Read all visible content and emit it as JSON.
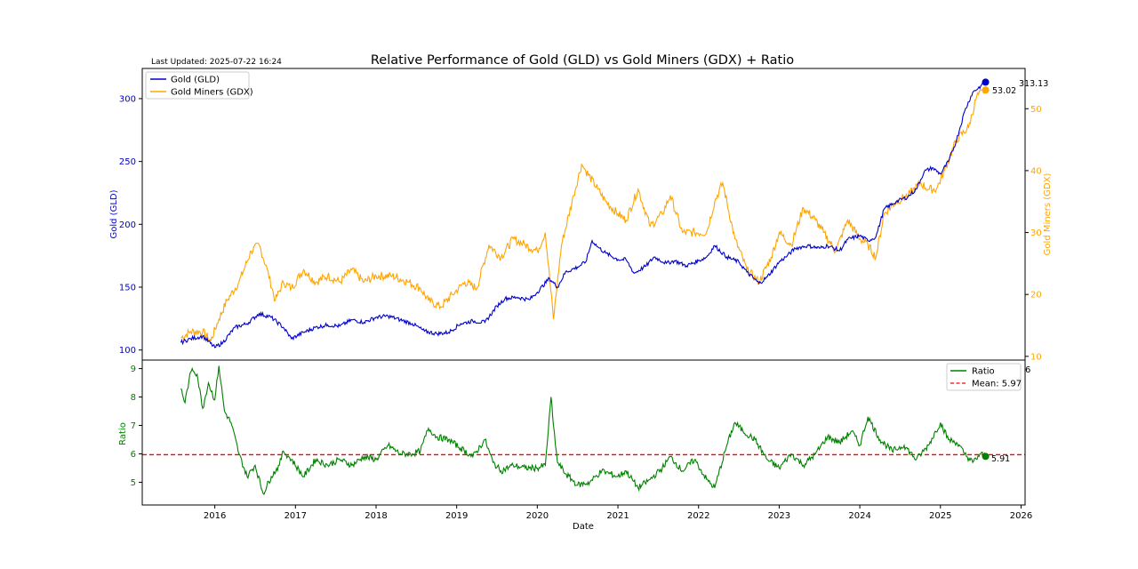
{
  "last_updated": "Last Updated: 2025-07-22 16:24",
  "chart_data": {
    "type": "line",
    "title": "Relative Performance of Gold (GLD) vs Gold Miners (GDX) + Ratio",
    "xlabel": "Date",
    "x_ticks": [
      "2016",
      "2017",
      "2018",
      "2019",
      "2020",
      "2021",
      "2022",
      "2023",
      "2024",
      "2025",
      "2026"
    ],
    "xlim": [
      2015.1,
      2026.05
    ],
    "top_panel": {
      "left_axis": {
        "label": "Gold (GLD)",
        "ylim": [
          92,
          324
        ],
        "ticks": [
          "100",
          "150",
          "200",
          "250",
          "300"
        ],
        "color": "#0000cc"
      },
      "right_axis": {
        "label": "Gold Miners (GDX)",
        "ylim": [
          9.4,
          56.5
        ],
        "ticks": [
          "10",
          "20",
          "30",
          "40",
          "50"
        ],
        "color": "#ffa500"
      },
      "series": [
        {
          "name": "Gold (GLD)",
          "color": "#0000cc",
          "axis": "left",
          "x": [
            2015.58,
            2015.7,
            2015.85,
            2016.0,
            2016.1,
            2016.25,
            2016.4,
            2016.55,
            2016.7,
            2016.85,
            2016.95,
            2017.1,
            2017.25,
            2017.4,
            2017.55,
            2017.7,
            2017.85,
            2018.0,
            2018.15,
            2018.3,
            2018.45,
            2018.6,
            2018.75,
            2018.9,
            2019.05,
            2019.2,
            2019.35,
            2019.5,
            2019.6,
            2019.75,
            2019.9,
            2020.0,
            2020.15,
            2020.25,
            2020.35,
            2020.5,
            2020.6,
            2020.68,
            2020.75,
            2020.85,
            2021.0,
            2021.1,
            2021.2,
            2021.35,
            2021.45,
            2021.6,
            2021.7,
            2021.85,
            2022.0,
            2022.1,
            2022.2,
            2022.35,
            2022.5,
            2022.6,
            2022.75,
            2022.85,
            2023.0,
            2023.1,
            2023.2,
            2023.35,
            2023.5,
            2023.6,
            2023.75,
            2023.85,
            2024.0,
            2024.1,
            2024.2,
            2024.3,
            2024.45,
            2024.6,
            2024.7,
            2024.8,
            2024.9,
            2025.0,
            2025.1,
            2025.2,
            2025.3,
            2025.4,
            2025.5,
            2025.56
          ],
          "y": [
            106,
            109,
            111,
            102,
            106,
            118,
            121,
            129,
            126,
            118,
            109,
            114,
            118,
            120,
            119,
            124,
            122,
            126,
            127,
            124,
            121,
            115,
            113,
            114,
            121,
            123,
            122,
            135,
            141,
            142,
            140,
            146,
            157,
            150,
            162,
            166,
            170,
            187,
            182,
            177,
            172,
            172,
            161,
            167,
            174,
            169,
            171,
            167,
            171,
            174,
            183,
            174,
            170,
            162,
            153,
            158,
            170,
            175,
            181,
            183,
            181,
            183,
            179,
            188,
            191,
            187,
            190,
            212,
            218,
            222,
            228,
            242,
            245,
            240,
            250,
            267,
            290,
            305,
            310,
            313
          ]
        },
        {
          "name": "Gold Miners (GDX)",
          "color": "#ffa500",
          "axis": "right",
          "x": [
            2015.58,
            2015.7,
            2015.85,
            2015.95,
            2016.05,
            2016.15,
            2016.3,
            2016.45,
            2016.55,
            2016.65,
            2016.75,
            2016.85,
            2016.95,
            2017.1,
            2017.25,
            2017.4,
            2017.55,
            2017.7,
            2017.85,
            2018.0,
            2018.2,
            2018.4,
            2018.55,
            2018.65,
            2018.8,
            2018.95,
            2019.1,
            2019.25,
            2019.4,
            2019.55,
            2019.7,
            2019.85,
            2020.0,
            2020.1,
            2020.2,
            2020.3,
            2020.45,
            2020.55,
            2020.6,
            2020.75,
            2020.85,
            2021.0,
            2021.1,
            2021.25,
            2021.4,
            2021.55,
            2021.65,
            2021.8,
            2021.95,
            2022.1,
            2022.2,
            2022.3,
            2022.45,
            2022.6,
            2022.75,
            2022.9,
            2023.0,
            2023.15,
            2023.3,
            2023.45,
            2023.55,
            2023.7,
            2023.85,
            2024.0,
            2024.1,
            2024.2,
            2024.3,
            2024.45,
            2024.6,
            2024.75,
            2024.85,
            2024.95,
            2025.05,
            2025.2,
            2025.35,
            2025.45,
            2025.56
          ],
          "y": [
            13,
            14,
            14,
            12.5,
            16,
            19,
            22,
            27,
            28,
            24,
            19,
            22,
            21,
            24,
            22,
            23,
            22,
            24,
            22,
            23,
            23,
            22,
            21,
            19,
            18,
            20,
            22,
            21,
            28,
            26,
            29,
            28,
            27,
            30,
            16,
            28,
            36,
            41,
            40,
            37,
            35,
            33,
            32,
            37,
            31,
            33,
            36,
            30,
            30,
            30,
            35,
            38,
            29,
            24,
            22,
            26,
            30,
            28,
            34,
            32,
            30,
            27,
            32,
            29,
            28,
            26,
            33,
            35,
            36,
            38,
            37,
            37,
            40,
            45,
            47,
            52,
            53
          ]
        }
      ],
      "end_labels": [
        {
          "text": "313.13",
          "value": 313.13,
          "axis": "left",
          "color": "#0000cc"
        },
        {
          "text": "53.02",
          "value": 53.02,
          "axis": "right",
          "color": "#ffa500"
        }
      ],
      "legend": {
        "position": "top-left",
        "entries": [
          "Gold (GLD)",
          "Gold Miners (GDX)"
        ]
      }
    },
    "bottom_panel": {
      "y_axis": {
        "label": "Ratio",
        "ylim": [
          4.2,
          9.3
        ],
        "ticks": [
          "5",
          "6",
          "7",
          "8",
          "9"
        ],
        "color": "#008000"
      },
      "series": [
        {
          "name": "Ratio",
          "color": "#008000",
          "x": [
            2015.58,
            2015.63,
            2015.68,
            2015.72,
            2015.78,
            2015.85,
            2015.92,
            2016.0,
            2016.05,
            2016.12,
            2016.2,
            2016.3,
            2016.4,
            2016.5,
            2016.6,
            2016.7,
            2016.8,
            2016.85,
            2016.95,
            2017.1,
            2017.25,
            2017.4,
            2017.55,
            2017.7,
            2017.85,
            2018.0,
            2018.15,
            2018.3,
            2018.45,
            2018.55,
            2018.65,
            2018.75,
            2018.9,
            2019.05,
            2019.2,
            2019.35,
            2019.45,
            2019.55,
            2019.7,
            2019.85,
            2020.0,
            2020.1,
            2020.17,
            2020.2,
            2020.25,
            2020.35,
            2020.5,
            2020.65,
            2020.8,
            2021.0,
            2021.1,
            2021.25,
            2021.4,
            2021.55,
            2021.65,
            2021.8,
            2021.95,
            2022.1,
            2022.2,
            2022.35,
            2022.45,
            2022.55,
            2022.7,
            2022.85,
            2023.0,
            2023.15,
            2023.3,
            2023.45,
            2023.6,
            2023.75,
            2023.9,
            2024.0,
            2024.1,
            2024.25,
            2024.4,
            2024.55,
            2024.7,
            2024.85,
            2025.0,
            2025.1,
            2025.2,
            2025.3,
            2025.4,
            2025.5,
            2025.56
          ],
          "y": [
            8.3,
            7.8,
            8.6,
            9.0,
            8.8,
            7.6,
            8.5,
            7.9,
            9.1,
            7.5,
            7.1,
            6.0,
            5.2,
            5.6,
            4.6,
            5.2,
            5.6,
            6.1,
            5.8,
            5.2,
            5.8,
            5.6,
            5.8,
            5.6,
            5.9,
            5.8,
            6.3,
            6.0,
            6.0,
            6.1,
            6.9,
            6.6,
            6.5,
            6.2,
            5.9,
            6.5,
            5.7,
            5.4,
            5.6,
            5.5,
            5.5,
            5.6,
            8.0,
            7.0,
            5.7,
            5.3,
            4.9,
            5.0,
            5.4,
            5.2,
            5.4,
            4.8,
            5.1,
            5.5,
            5.9,
            5.4,
            5.8,
            5.1,
            4.8,
            6.3,
            7.1,
            6.8,
            6.5,
            5.8,
            5.5,
            6.0,
            5.6,
            6.0,
            6.6,
            6.4,
            6.8,
            6.3,
            7.3,
            6.5,
            6.1,
            6.3,
            5.8,
            6.3,
            7.1,
            6.5,
            6.4,
            6.0,
            5.7,
            6.0,
            5.91
          ]
        }
      ],
      "mean_line": {
        "value": 5.97,
        "label": "Mean: 5.97",
        "color": "#ff0000"
      },
      "end_label": {
        "text": "5.91",
        "value": 5.91
      },
      "legend": {
        "position": "top-right",
        "entries": [
          "Ratio",
          "Mean: 5.97"
        ]
      },
      "stray_tick": "6"
    }
  }
}
